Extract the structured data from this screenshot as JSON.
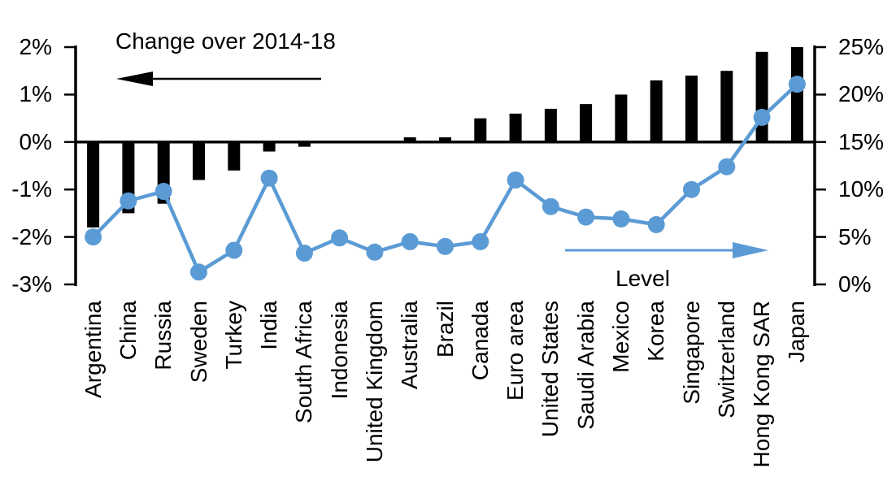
{
  "chart_data": {
    "type": "bar",
    "subtype": "dual-axis-bar-and-line",
    "title": "",
    "categories": [
      "Argentina",
      "China",
      "Russia",
      "Sweden",
      "Turkey",
      "India",
      "South Africa",
      "Indonesia",
      "United Kingdom",
      "Australia",
      "Brazil",
      "Canada",
      "Euro area",
      "United States",
      "Saudi Arabia",
      "Mexico",
      "Korea",
      "Singapore",
      "Switzerland",
      "Hong Kong SAR",
      "Japan"
    ],
    "series": [
      {
        "name": "Change over 2014-18",
        "type": "bar",
        "axis": "left",
        "color": "#000000",
        "values": [
          -1.8,
          -1.5,
          -1.3,
          -0.8,
          -0.6,
          -0.2,
          -0.1,
          0,
          0,
          0.1,
          0.1,
          0.5,
          0.6,
          0.7,
          0.8,
          1.0,
          1.3,
          1.4,
          1.5,
          1.9,
          2.0
        ]
      },
      {
        "name": "Level",
        "type": "line",
        "axis": "right",
        "color": "#5B9BD5",
        "values": [
          5.0,
          8.8,
          9.8,
          1.3,
          3.6,
          11.2,
          3.3,
          4.9,
          3.4,
          4.5,
          4.0,
          4.5,
          11.0,
          8.2,
          7.1,
          6.9,
          6.3,
          10.0,
          12.4,
          17.6,
          21.1
        ]
      }
    ],
    "left_axis": {
      "min": -3,
      "max": 2,
      "unit": "%",
      "tick_values": [
        2,
        1,
        0,
        -1,
        -2,
        -3
      ],
      "tick_labels": [
        "2%",
        "1%",
        "0%",
        "-1%",
        "-2%",
        "-3%"
      ]
    },
    "right_axis": {
      "min": 0,
      "max": 25,
      "unit": "%",
      "tick_values": [
        25,
        20,
        15,
        10,
        5,
        0
      ],
      "tick_labels": [
        "25%",
        "20%",
        "15%",
        "10%",
        "5%",
        "0%"
      ]
    },
    "annotations": {
      "bar_label": {
        "text": "Change over 2014-18",
        "arrow_direction": "left",
        "color": "#000000"
      },
      "line_label": {
        "text": "Level",
        "arrow_direction": "right",
        "color": "#5B9BD5"
      }
    },
    "colors": {
      "bar": "#000000",
      "line": "#5B9BD5",
      "background": "#FFFFFF",
      "text": "#000000"
    },
    "grid": false,
    "legend_position": "inline-annotations"
  }
}
